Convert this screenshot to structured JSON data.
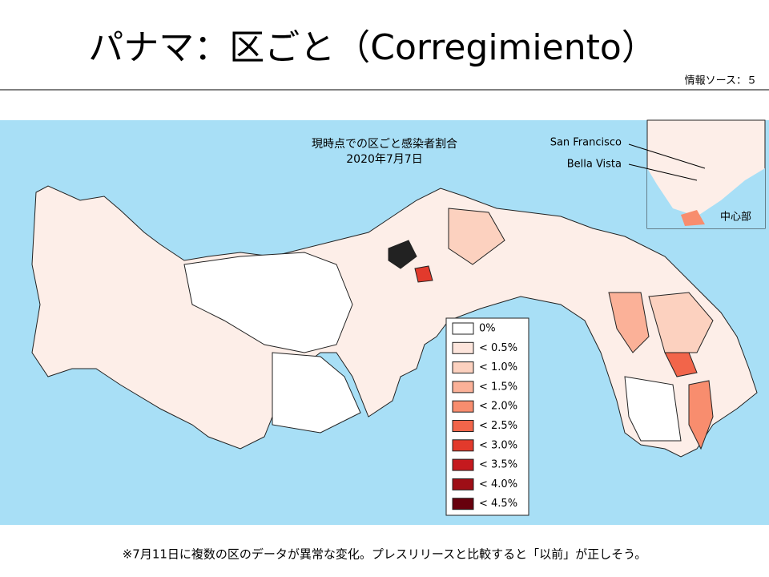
{
  "header": {
    "title": "パナマ：区ごと（Corregimiento）",
    "source": "情報ソース：５"
  },
  "map": {
    "title": "現時点での区ごと感染者割合",
    "date": "2020年7月7日",
    "labels": [
      "San Francisco",
      "Bella Vista"
    ],
    "inset_label": "中心部"
  },
  "legend": {
    "items": [
      {
        "label": "0%",
        "color": "#ffffff"
      },
      {
        "label": "< 0.5%",
        "color": "#fde5dc"
      },
      {
        "label": "< 1.0%",
        "color": "#fcd1bf"
      },
      {
        "label": "< 1.5%",
        "color": "#fbb198"
      },
      {
        "label": "< 2.0%",
        "color": "#f88d6e"
      },
      {
        "label": "< 2.5%",
        "color": "#f2654a"
      },
      {
        "label": "< 3.0%",
        "color": "#e23a2c"
      },
      {
        "label": "< 3.5%",
        "color": "#c5191e"
      },
      {
        "label": "< 4.0%",
        "color": "#9e0e16"
      },
      {
        "label": "< 4.5%",
        "color": "#67000d"
      }
    ]
  },
  "footnote": "※7月11日に複数の区のデータが異常な変化。プレスリリースと比較すると「以前」が正しそう。"
}
